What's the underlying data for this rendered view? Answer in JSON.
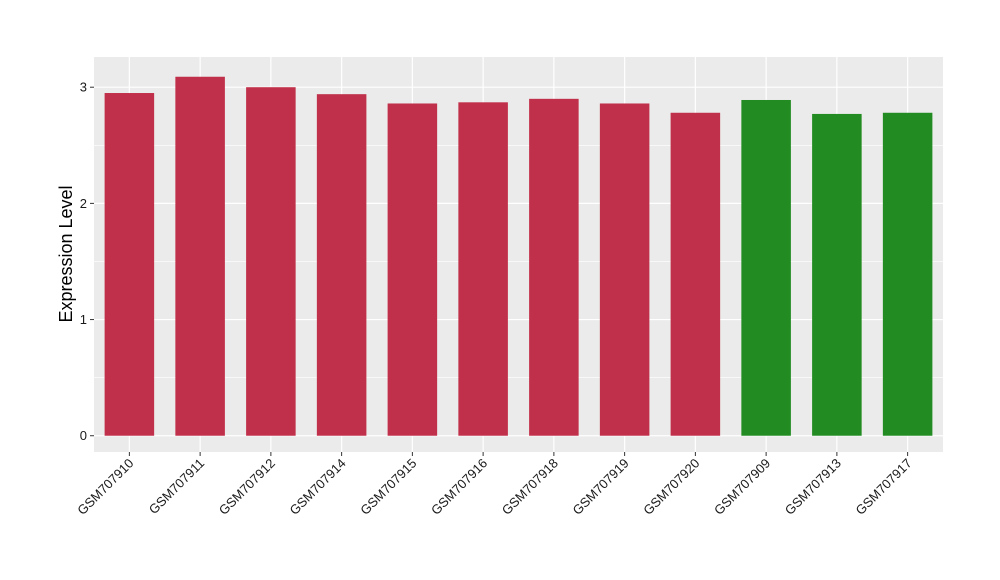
{
  "chart_data": {
    "type": "bar",
    "ylabel": "Expression Level",
    "xlabel": "",
    "ylim": [
      -0.14,
      3.26
    ],
    "y_ticks": [
      0,
      1,
      2,
      3
    ],
    "grid": true,
    "categories": [
      "GSM707910",
      "GSM707911",
      "GSM707912",
      "GSM707914",
      "GSM707915",
      "GSM707916",
      "GSM707918",
      "GSM707919",
      "GSM707920",
      "GSM707909",
      "GSM707913",
      "GSM707917"
    ],
    "values": [
      2.95,
      3.09,
      3.0,
      2.94,
      2.86,
      2.87,
      2.9,
      2.86,
      2.78,
      2.89,
      2.77,
      2.78
    ],
    "bar_colors": [
      "#c1304a",
      "#c1304a",
      "#c1304a",
      "#c1304a",
      "#c1304a",
      "#c1304a",
      "#c1304a",
      "#c1304a",
      "#c1304a",
      "#228b22",
      "#228b22",
      "#228b22"
    ],
    "panel_background": "#ebebeb",
    "grid_color": "#ffffff"
  }
}
